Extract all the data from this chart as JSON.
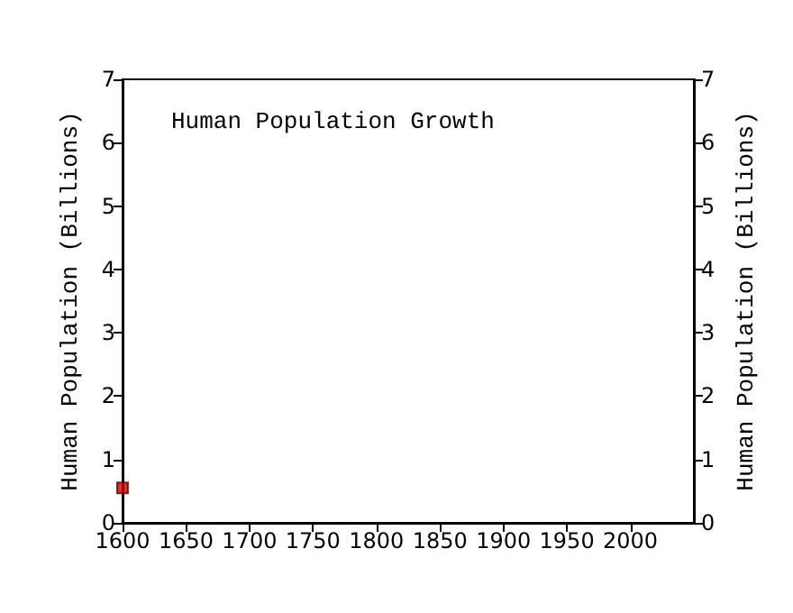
{
  "chart_data": {
    "type": "scatter",
    "title": "Human Population Growth",
    "ylabel": "Human Population (Billions)",
    "y2label": "Human Population (Billions)",
    "x": [
      1600
    ],
    "series": [
      {
        "color": "#cc0000",
        "values": [
          0.55
        ]
      }
    ],
    "xlim": [
      1600,
      2050
    ],
    "xticks": [
      1600,
      1650,
      1700,
      1750,
      1800,
      1850,
      1900,
      1950,
      2000
    ],
    "ylim": [
      0,
      7
    ],
    "yticks": [
      0,
      1,
      2,
      3,
      4,
      5,
      6,
      7
    ],
    "y2lim": [
      0,
      7
    ],
    "y2ticks": [
      0,
      1,
      2,
      3,
      4,
      5,
      6,
      7
    ],
    "marker": "square"
  }
}
